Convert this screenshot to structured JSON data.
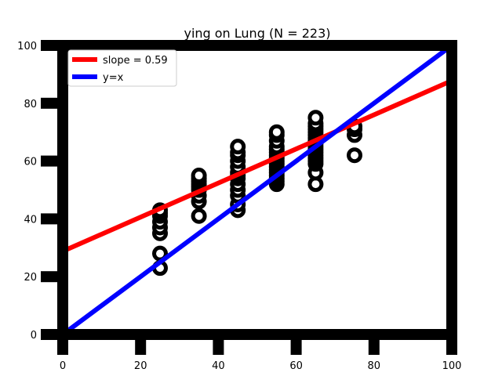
{
  "chart_data": {
    "type": "scatter",
    "title": "ying on Lung (N = 223)",
    "xlabel": "",
    "ylabel": "",
    "xlim": [
      0,
      100
    ],
    "ylim": [
      0,
      100
    ],
    "xticks": [
      0,
      20,
      40,
      60,
      80,
      100
    ],
    "yticks": [
      0,
      20,
      40,
      60,
      80,
      100
    ],
    "grid": false,
    "legend_position": "top-left",
    "colors": {
      "points": "#000000",
      "fit": "#ff0000",
      "identity": "#0000ff"
    },
    "series": [
      {
        "kind": "points",
        "x": [
          25,
          25,
          25,
          25,
          25,
          25,
          25,
          25,
          35,
          35,
          35,
          35,
          35,
          35,
          35,
          35,
          35,
          45,
          45,
          45,
          45,
          45,
          45,
          45,
          45,
          45,
          45,
          45,
          45,
          45,
          55,
          55,
          55,
          55,
          55,
          55,
          55,
          55,
          55,
          55,
          55,
          55,
          55,
          55,
          55,
          55,
          55,
          65,
          65,
          65,
          65,
          65,
          65,
          65,
          65,
          65,
          65,
          65,
          65,
          65,
          65,
          65,
          65,
          65,
          65,
          75,
          75,
          75,
          75
        ],
        "y": [
          23,
          28,
          35,
          37,
          39,
          41,
          42,
          43,
          41,
          46,
          48,
          50,
          51,
          52,
          53,
          54,
          55,
          43,
          45,
          48,
          50,
          52,
          54,
          55,
          56,
          58,
          60,
          62,
          63,
          65,
          52,
          53,
          54,
          55,
          56,
          57,
          58,
          59,
          60,
          61,
          62,
          63,
          64,
          65,
          67,
          69,
          70,
          52,
          56,
          59,
          60,
          61,
          62,
          63,
          64,
          65,
          66,
          67,
          68,
          69,
          70,
          71,
          72,
          73,
          75,
          62,
          69,
          71,
          72
        ]
      },
      {
        "kind": "line",
        "name": "slope = 0.59",
        "slope": 0.59,
        "intercept": 28.8
      },
      {
        "kind": "line",
        "name": "y=x",
        "slope": 1,
        "intercept": 0
      }
    ]
  }
}
